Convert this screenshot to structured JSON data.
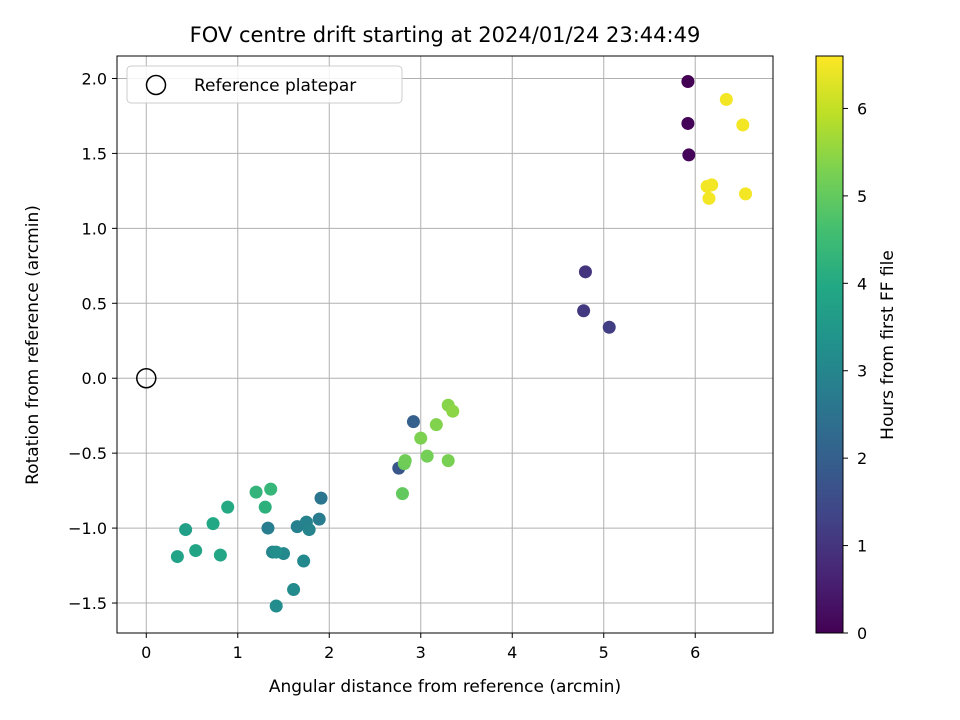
{
  "chart_data": {
    "type": "scatter",
    "title": "FOV centre drift starting at 2024/01/24 23:44:49",
    "xlabel": "Angular distance from reference (arcmin)",
    "ylabel": "Rotation from reference (arcmin)",
    "xlim": [
      -0.32,
      6.85
    ],
    "ylim": [
      -1.7,
      2.15
    ],
    "xticks": [
      0,
      1,
      2,
      3,
      4,
      5,
      6
    ],
    "xtick_labels": [
      "0",
      "1",
      "2",
      "3",
      "4",
      "5",
      "6"
    ],
    "yticks": [
      -1.5,
      -1.0,
      -0.5,
      0.0,
      0.5,
      1.0,
      1.5,
      2.0
    ],
    "ytick_labels": [
      "−1.5",
      "−1.0",
      "−0.5",
      "0.0",
      "0.5",
      "1.0",
      "1.5",
      "2.0"
    ],
    "grid": true,
    "colormap": "viridis",
    "colorbar": {
      "label": "Hours from first FF file",
      "range": [
        0,
        6.6
      ],
      "ticks": [
        0,
        1,
        2,
        3,
        4,
        5,
        6
      ],
      "tick_labels": [
        "0",
        "1",
        "2",
        "3",
        "4",
        "5",
        "6"
      ]
    },
    "legend": {
      "position": "upper-left",
      "entries": [
        "Reference platepar"
      ]
    },
    "reference": {
      "x": 0.0,
      "y": 0.0
    },
    "points": [
      {
        "x": 5.92,
        "y": 1.98,
        "c": 0.0
      },
      {
        "x": 5.92,
        "y": 1.7,
        "c": 0.05
      },
      {
        "x": 5.93,
        "y": 1.49,
        "c": 0.1
      },
      {
        "x": 4.8,
        "y": 0.71,
        "c": 1.0
      },
      {
        "x": 4.78,
        "y": 0.45,
        "c": 1.1
      },
      {
        "x": 5.06,
        "y": 0.34,
        "c": 1.2
      },
      {
        "x": 2.76,
        "y": -0.6,
        "c": 1.75
      },
      {
        "x": 2.92,
        "y": -0.29,
        "c": 2.0
      },
      {
        "x": 1.91,
        "y": -0.8,
        "c": 2.6
      },
      {
        "x": 1.89,
        "y": -0.94,
        "c": 2.75
      },
      {
        "x": 1.33,
        "y": -1.0,
        "c": 2.8
      },
      {
        "x": 1.65,
        "y": -0.99,
        "c": 2.85
      },
      {
        "x": 1.75,
        "y": -0.96,
        "c": 2.9
      },
      {
        "x": 1.78,
        "y": -1.01,
        "c": 2.95
      },
      {
        "x": 1.38,
        "y": -1.16,
        "c": 3.0
      },
      {
        "x": 1.5,
        "y": -1.17,
        "c": 3.05
      },
      {
        "x": 1.72,
        "y": -1.22,
        "c": 3.1
      },
      {
        "x": 1.61,
        "y": -1.41,
        "c": 3.15
      },
      {
        "x": 1.42,
        "y": -1.52,
        "c": 3.2
      },
      {
        "x": 1.42,
        "y": -1.16,
        "c": 3.25
      },
      {
        "x": 0.43,
        "y": -1.01,
        "c": 3.7
      },
      {
        "x": 0.34,
        "y": -1.19,
        "c": 3.8
      },
      {
        "x": 0.54,
        "y": -1.15,
        "c": 3.85
      },
      {
        "x": 0.81,
        "y": -1.18,
        "c": 3.9
      },
      {
        "x": 0.73,
        "y": -0.97,
        "c": 3.95
      },
      {
        "x": 0.89,
        "y": -0.86,
        "c": 4.0
      },
      {
        "x": 1.3,
        "y": -0.86,
        "c": 4.2
      },
      {
        "x": 1.2,
        "y": -0.76,
        "c": 4.3
      },
      {
        "x": 1.36,
        "y": -0.74,
        "c": 4.35
      },
      {
        "x": 2.8,
        "y": -0.77,
        "c": 5.0
      },
      {
        "x": 2.82,
        "y": -0.57,
        "c": 5.1
      },
      {
        "x": 2.83,
        "y": -0.55,
        "c": 5.15
      },
      {
        "x": 3.07,
        "y": -0.52,
        "c": 5.2
      },
      {
        "x": 3.3,
        "y": -0.55,
        "c": 5.25
      },
      {
        "x": 3.0,
        "y": -0.4,
        "c": 5.3
      },
      {
        "x": 3.17,
        "y": -0.31,
        "c": 5.35
      },
      {
        "x": 3.3,
        "y": -0.18,
        "c": 5.4
      },
      {
        "x": 3.35,
        "y": -0.22,
        "c": 5.45
      },
      {
        "x": 6.34,
        "y": 1.86,
        "c": 6.5
      },
      {
        "x": 6.52,
        "y": 1.69,
        "c": 6.5
      },
      {
        "x": 6.13,
        "y": 1.28,
        "c": 6.5
      },
      {
        "x": 6.18,
        "y": 1.29,
        "c": 6.5
      },
      {
        "x": 6.15,
        "y": 1.2,
        "c": 6.5
      },
      {
        "x": 6.55,
        "y": 1.23,
        "c": 6.5
      }
    ]
  }
}
